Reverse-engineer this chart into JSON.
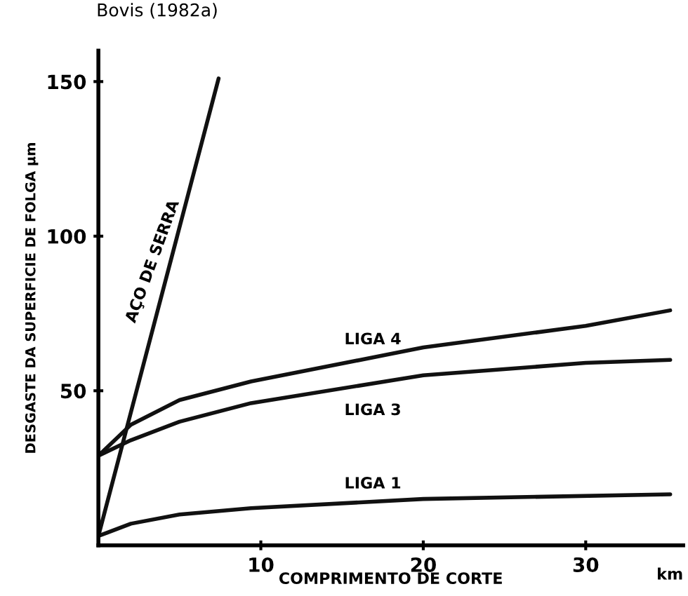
{
  "chart_data": {
    "type": "line",
    "xlabel": "COMPRIMENTO DE CORTE",
    "ylabel": "DESGASTE DA SUPERFICIE DE FOLGA μm",
    "series": [
      {
        "name": "AÇO DE SERRA",
        "color": "#111111",
        "x": [
          0,
          7.4
        ],
        "values": [
          3,
          151
        ]
      },
      {
        "name": "LIGA 4",
        "color": "#111111",
        "x": [
          0,
          2,
          5,
          9.4,
          20,
          30,
          35.2
        ],
        "values": [
          29,
          39,
          47,
          53,
          64,
          71,
          76
        ]
      },
      {
        "name": "LIGA 3",
        "color": "#111111",
        "x": [
          0,
          2,
          5,
          9.4,
          20,
          30,
          35.2
        ],
        "values": [
          29,
          34,
          40,
          46,
          55,
          59,
          60
        ]
      },
      {
        "name": "LIGA 1",
        "color": "#111111",
        "x": [
          0,
          2,
          5,
          9.4,
          20,
          35.2
        ],
        "values": [
          3,
          7,
          10,
          12,
          15,
          16.5
        ]
      }
    ],
    "annotations": [
      "Bovis (1982a)",
      "km"
    ],
    "xlim": [
      0,
      36
    ],
    "ylim": [
      0,
      160
    ],
    "xticks": [
      10,
      20,
      30
    ],
    "yticks": [
      50,
      100,
      150
    ],
    "grid": false,
    "legend": false,
    "marker": "none",
    "line_style": "solid"
  }
}
